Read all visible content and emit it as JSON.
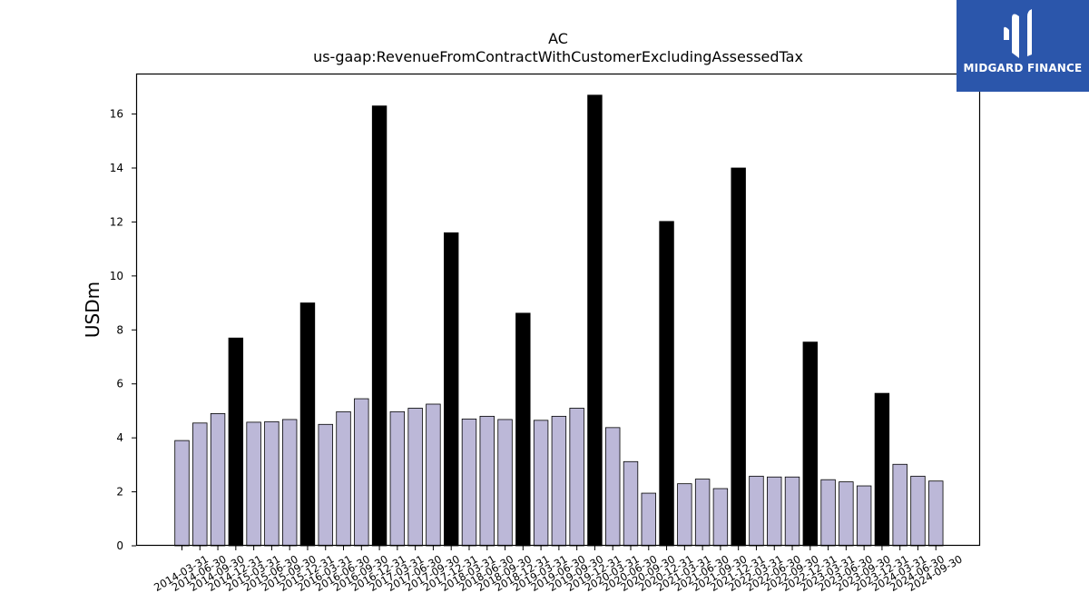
{
  "chart_data": {
    "type": "bar",
    "title": "AC",
    "subtitle": "us-gaap:RevenueFromContractWithCustomerExcludingAssessedTax",
    "xlabel": "",
    "ylabel": "USDm",
    "ylim": [
      0,
      17.5
    ],
    "yticks": [
      0,
      2,
      4,
      6,
      8,
      10,
      12,
      14,
      16
    ],
    "grid": false,
    "colors": {
      "quarter": "#bcb8d8",
      "annual": "#000000",
      "edge": "#000000"
    },
    "categories": [
      "2014-03-31",
      "2014-06-30",
      "2014-09-30",
      "2014-12-31",
      "2015-03-31",
      "2015-06-30",
      "2015-09-30",
      "2015-12-31",
      "2016-03-31",
      "2016-06-30",
      "2016-09-30",
      "2016-12-31",
      "2017-03-31",
      "2017-06-30",
      "2017-09-30",
      "2017-12-31",
      "2018-03-31",
      "2018-06-30",
      "2018-09-30",
      "2018-12-31",
      "2019-03-31",
      "2019-06-30",
      "2019-09-30",
      "2019-12-31",
      "2020-03-31",
      "2020-06-30",
      "2020-09-30",
      "2020-12-31",
      "2021-03-31",
      "2021-06-30",
      "2021-09-30",
      "2021-12-31",
      "2022-03-31",
      "2022-06-30",
      "2022-09-30",
      "2022-12-31",
      "2023-03-31",
      "2023-06-30",
      "2023-09-30",
      "2023-12-31",
      "2024-03-31",
      "2024-06-30",
      "2024-09-30"
    ],
    "values": [
      3.9,
      4.55,
      4.9,
      7.7,
      4.58,
      4.6,
      4.68,
      9.0,
      4.5,
      4.97,
      5.45,
      16.3,
      4.97,
      5.1,
      5.25,
      11.6,
      4.7,
      4.8,
      4.68,
      8.62,
      4.65,
      4.8,
      5.1,
      16.7,
      4.38,
      3.12,
      1.95,
      12.02,
      2.3,
      2.47,
      2.12,
      14.0,
      2.58,
      2.55,
      2.55,
      7.55,
      2.45,
      2.37,
      2.22,
      5.65,
      3.02,
      2.58,
      2.4
    ],
    "annual_flags": [
      0,
      0,
      0,
      1,
      0,
      0,
      0,
      1,
      0,
      0,
      0,
      1,
      0,
      0,
      0,
      1,
      0,
      0,
      0,
      1,
      0,
      0,
      0,
      1,
      0,
      0,
      0,
      1,
      0,
      0,
      0,
      1,
      0,
      0,
      0,
      1,
      0,
      0,
      0,
      1,
      0,
      0,
      0
    ]
  },
  "logo": {
    "text": "MIDGARD FINANCE",
    "icon": "midgard-m-logo-icon",
    "bg": "#2b56ab"
  }
}
